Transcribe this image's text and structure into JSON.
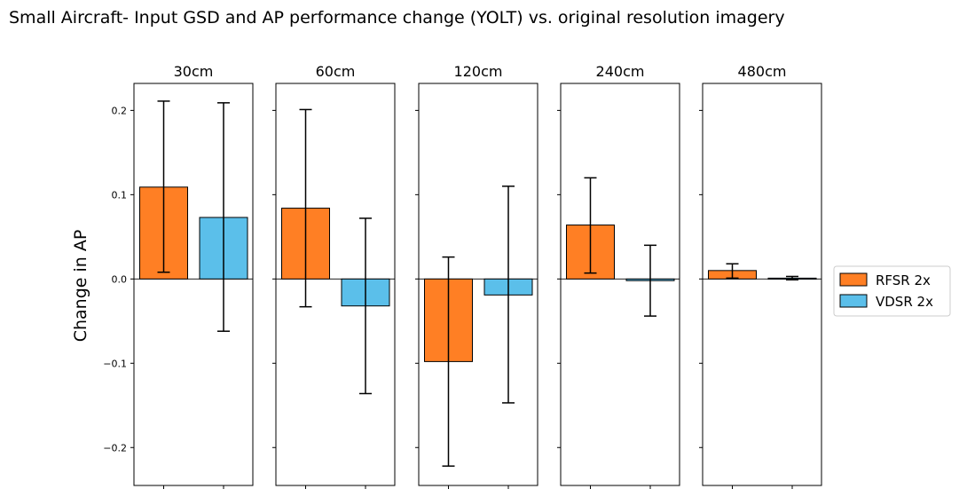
{
  "chart_data": {
    "type": "bar",
    "title": "Small Aircraft- Input GSD and AP performance change (YOLT) vs. original resolution imagery",
    "ylabel": "Change in AP",
    "xlabel": "",
    "ylim": [
      -0.245,
      0.232
    ],
    "yticks": [
      -0.2,
      -0.1,
      0.0,
      0.1,
      0.2
    ],
    "ytick_labels": [
      "−0.2",
      "−0.1",
      "0.0",
      "0.1",
      "0.2"
    ],
    "legend": {
      "placement": "right",
      "entries": [
        "RFSR 2x",
        "VDSR 2x"
      ],
      "colors": [
        "#ff7f24",
        "#5bbfea"
      ]
    },
    "panels": [
      {
        "label": "30cm",
        "series": [
          {
            "name": "RFSR 2x",
            "value": 0.109,
            "err_low": 0.008,
            "err_high": 0.211,
            "color": "#ff7f24"
          },
          {
            "name": "VDSR 2x",
            "value": 0.073,
            "err_low": -0.062,
            "err_high": 0.209,
            "color": "#5bbfea"
          }
        ]
      },
      {
        "label": "60cm",
        "series": [
          {
            "name": "RFSR 2x",
            "value": 0.084,
            "err_low": -0.033,
            "err_high": 0.201,
            "color": "#ff7f24"
          },
          {
            "name": "VDSR 2x",
            "value": -0.032,
            "err_low": -0.136,
            "err_high": 0.072,
            "color": "#5bbfea"
          }
        ]
      },
      {
        "label": "120cm",
        "series": [
          {
            "name": "RFSR 2x",
            "value": -0.098,
            "err_low": -0.222,
            "err_high": 0.026,
            "color": "#ff7f24"
          },
          {
            "name": "VDSR 2x",
            "value": -0.019,
            "err_low": -0.147,
            "err_high": 0.11,
            "color": "#5bbfea"
          }
        ]
      },
      {
        "label": "240cm",
        "series": [
          {
            "name": "RFSR 2x",
            "value": 0.064,
            "err_low": 0.007,
            "err_high": 0.12,
            "color": "#ff7f24"
          },
          {
            "name": "VDSR 2x",
            "value": -0.002,
            "err_low": -0.044,
            "err_high": 0.04,
            "color": "#5bbfea"
          }
        ]
      },
      {
        "label": "480cm",
        "series": [
          {
            "name": "RFSR 2x",
            "value": 0.01,
            "err_low": 0.001,
            "err_high": 0.018,
            "color": "#ff7f24"
          },
          {
            "name": "VDSR 2x",
            "value": 0.001,
            "err_low": -0.001,
            "err_high": 0.003,
            "color": "#5bbfea"
          }
        ]
      }
    ]
  }
}
